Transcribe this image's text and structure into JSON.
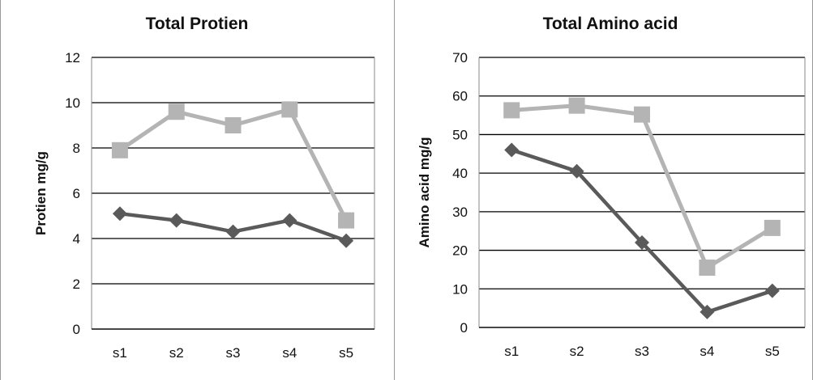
{
  "chart_data": [
    {
      "type": "line",
      "title": "Total Protien",
      "xlabel": "",
      "ylabel": "Protien  mg/g",
      "categories": [
        "s1",
        "s2",
        "s3",
        "s4",
        "s5"
      ],
      "ylim": [
        0,
        12
      ],
      "yticks": [
        0,
        2,
        4,
        6,
        8,
        10,
        12
      ],
      "grid": true,
      "series": [
        {
          "marker": "diamond",
          "color": "#5a5a5a",
          "values": [
            5.1,
            4.8,
            4.3,
            4.8,
            3.9
          ]
        },
        {
          "marker": "square",
          "color": "#b4b4b4",
          "values": [
            7.9,
            9.6,
            9.0,
            9.7,
            4.8
          ]
        }
      ]
    },
    {
      "type": "line",
      "title": "Total Amino acid",
      "xlabel": "",
      "ylabel": "Amino acid mg/g",
      "categories": [
        "s1",
        "s2",
        "s3",
        "s4",
        "s5"
      ],
      "ylim": [
        0,
        70
      ],
      "yticks": [
        0,
        10,
        20,
        30,
        40,
        50,
        60,
        70
      ],
      "grid": true,
      "series": [
        {
          "marker": "diamond",
          "color": "#5a5a5a",
          "values": [
            46,
            40.5,
            22,
            4,
            9.5
          ]
        },
        {
          "marker": "square",
          "color": "#b4b4b4",
          "values": [
            56.3,
            57.5,
            55.2,
            15.5,
            25.8
          ]
        }
      ]
    }
  ]
}
